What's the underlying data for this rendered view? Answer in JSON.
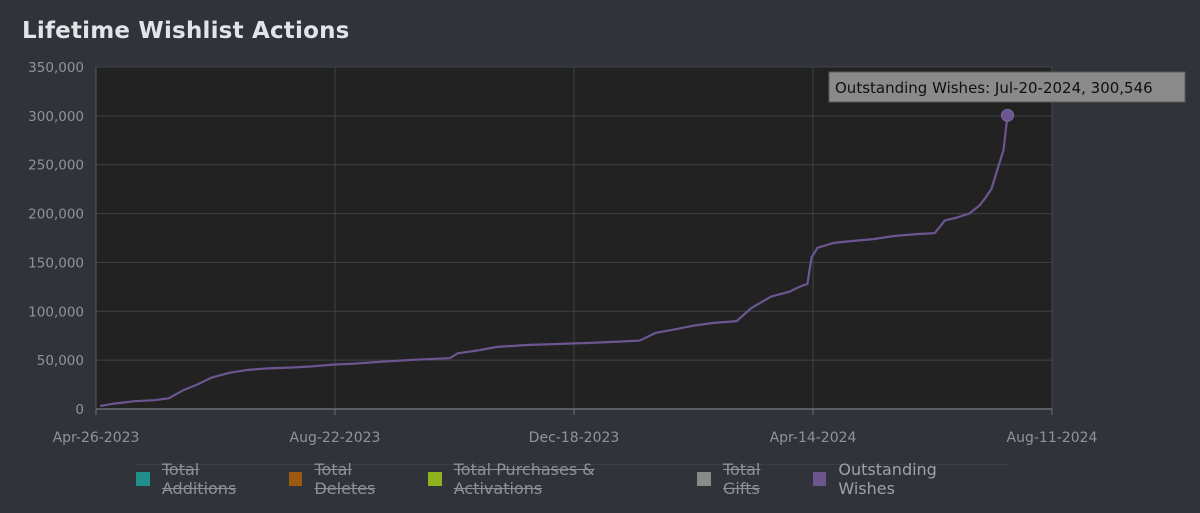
{
  "chart_data": {
    "type": "line",
    "title": "Lifetime Wishlist Actions",
    "y_ticks": [
      "0",
      "50,000",
      "100,000",
      "150,000",
      "200,000",
      "250,000",
      "300,000",
      "350,000"
    ],
    "ylim": [
      0,
      350000
    ],
    "x_ticks": [
      "Apr-26-2023",
      "Aug-22-2023",
      "Dec-18-2023",
      "Apr-14-2024",
      "Aug-11-2024"
    ],
    "x_range": [
      "2023-04-26",
      "2024-08-11"
    ],
    "grid": true,
    "legend_position": "bottom",
    "legend": [
      {
        "name": "Total Additions",
        "color": "#1f8f8a",
        "hidden": true
      },
      {
        "name": "Total Deletes",
        "color": "#9b5a10",
        "hidden": true
      },
      {
        "name": "Total Purchases & Activations",
        "color": "#8fb31c",
        "hidden": true
      },
      {
        "name": "Total Gifts",
        "color": "#8a8a8a",
        "hidden": true
      },
      {
        "name": "Outstanding Wishes",
        "color": "#6d5690",
        "hidden": false
      }
    ],
    "series": [
      {
        "name": "Outstanding Wishes",
        "color": "#6d5690",
        "points": [
          [
            "2023-04-28",
            3000
          ],
          [
            "2023-05-05",
            5500
          ],
          [
            "2023-05-15",
            8000
          ],
          [
            "2023-05-25",
            9000
          ],
          [
            "2023-06-01",
            11000
          ],
          [
            "2023-06-08",
            19000
          ],
          [
            "2023-06-15",
            25000
          ],
          [
            "2023-06-22",
            32000
          ],
          [
            "2023-07-01",
            37000
          ],
          [
            "2023-07-10",
            40000
          ],
          [
            "2023-07-20",
            41500
          ],
          [
            "2023-08-01",
            42500
          ],
          [
            "2023-08-10",
            43500
          ],
          [
            "2023-08-22",
            45500
          ],
          [
            "2023-09-01",
            46500
          ],
          [
            "2023-09-15",
            48500
          ],
          [
            "2023-10-01",
            50500
          ],
          [
            "2023-10-18",
            52000
          ],
          [
            "2023-10-22",
            57000
          ],
          [
            "2023-11-01",
            60000
          ],
          [
            "2023-11-10",
            63500
          ],
          [
            "2023-11-25",
            65500
          ],
          [
            "2023-12-10",
            66500
          ],
          [
            "2023-12-25",
            67500
          ],
          [
            "2024-01-10",
            69000
          ],
          [
            "2024-01-20",
            70000
          ],
          [
            "2024-01-28",
            78000
          ],
          [
            "2024-02-05",
            81000
          ],
          [
            "2024-02-15",
            85000
          ],
          [
            "2024-02-25",
            88000
          ],
          [
            "2024-03-08",
            90000
          ],
          [
            "2024-03-15",
            103000
          ],
          [
            "2024-03-25",
            115000
          ],
          [
            "2024-04-03",
            120000
          ],
          [
            "2024-04-08",
            125000
          ],
          [
            "2024-04-12",
            128000
          ],
          [
            "2024-04-14",
            155000
          ],
          [
            "2024-04-17",
            165000
          ],
          [
            "2024-04-25",
            170000
          ],
          [
            "2024-05-05",
            172000
          ],
          [
            "2024-05-15",
            174000
          ],
          [
            "2024-05-25",
            177000
          ],
          [
            "2024-06-05",
            179000
          ],
          [
            "2024-06-14",
            180000
          ],
          [
            "2024-06-19",
            193000
          ],
          [
            "2024-06-25",
            196000
          ],
          [
            "2024-07-01",
            200000
          ],
          [
            "2024-07-06",
            208000
          ],
          [
            "2024-07-09",
            216000
          ],
          [
            "2024-07-12",
            225000
          ],
          [
            "2024-07-15",
            245000
          ],
          [
            "2024-07-18",
            265000
          ],
          [
            "2024-07-20",
            300546
          ]
        ]
      }
    ],
    "highlight": {
      "date": "2024-07-20",
      "value": 300546
    },
    "tooltip": "Outstanding Wishes: Jul-20-2024, 300,546"
  }
}
